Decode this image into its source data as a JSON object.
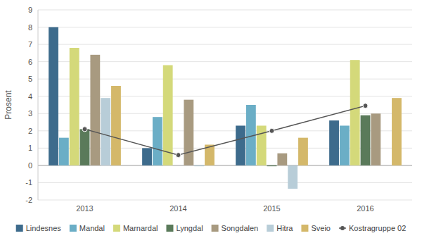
{
  "chart_data": {
    "type": "bar",
    "y_label": "Prosent",
    "categories": [
      "2013",
      "2014",
      "2015",
      "2016"
    ],
    "series": [
      {
        "name": "Lindesnes",
        "color": "#3d6b8c",
        "values": [
          8.0,
          1.0,
          2.3,
          2.6
        ]
      },
      {
        "name": "Mandal",
        "color": "#6baec6",
        "values": [
          1.6,
          2.8,
          3.5,
          2.3
        ]
      },
      {
        "name": "Marnardal",
        "color": "#d4d97a",
        "values": [
          6.8,
          5.8,
          2.3,
          6.1
        ]
      },
      {
        "name": "Lyngdal",
        "color": "#5a7a5a",
        "values": [
          2.1,
          0.0,
          -0.05,
          2.9
        ]
      },
      {
        "name": "Songdalen",
        "color": "#a89a80",
        "values": [
          6.4,
          3.8,
          0.7,
          3.0
        ]
      },
      {
        "name": "Hitra",
        "color": "#b8cdd8",
        "values": [
          3.9,
          -0.05,
          -1.35,
          0.0
        ]
      },
      {
        "name": "Sveio",
        "color": "#d4b86a",
        "values": [
          4.6,
          1.2,
          1.6,
          3.9
        ]
      },
      {
        "name": "Kostragruppe 02",
        "color": "#555555",
        "type": "line",
        "marker": "circle",
        "values": [
          2.1,
          0.6,
          2.0,
          3.45
        ]
      }
    ],
    "ylim": [
      -2,
      9
    ],
    "yticks": [
      -2,
      -1,
      0,
      1,
      2,
      3,
      4,
      5,
      6,
      7,
      8,
      9
    ],
    "grid": true,
    "legend": "bottom"
  }
}
